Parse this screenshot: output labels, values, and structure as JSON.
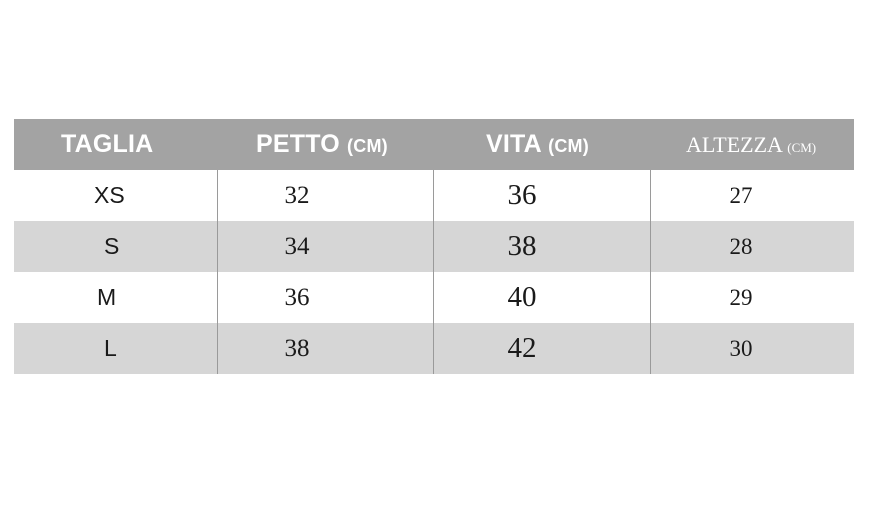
{
  "table": {
    "headers": [
      {
        "label": "TAGLIA",
        "unit": ""
      },
      {
        "label": "PETTO",
        "unit": "(CM)"
      },
      {
        "label": "VITA",
        "unit": "(CM)"
      },
      {
        "label": "ALTEZZA",
        "unit": "(CM)"
      }
    ],
    "rows": [
      {
        "taglia": "XS",
        "petto": "32",
        "vita": "36",
        "altezza": "27"
      },
      {
        "taglia": "S",
        "petto": "34",
        "vita": "38",
        "altezza": "28"
      },
      {
        "taglia": "M",
        "petto": "36",
        "vita": "40",
        "altezza": "29"
      },
      {
        "taglia": "L",
        "petto": "38",
        "vita": "42",
        "altezza": "30"
      }
    ]
  },
  "colors": {
    "header_background": "#a3a3a3",
    "header_text": "#ffffff",
    "alternate_row": "#d6d6d6",
    "cell_text": "#1a1a1a"
  }
}
